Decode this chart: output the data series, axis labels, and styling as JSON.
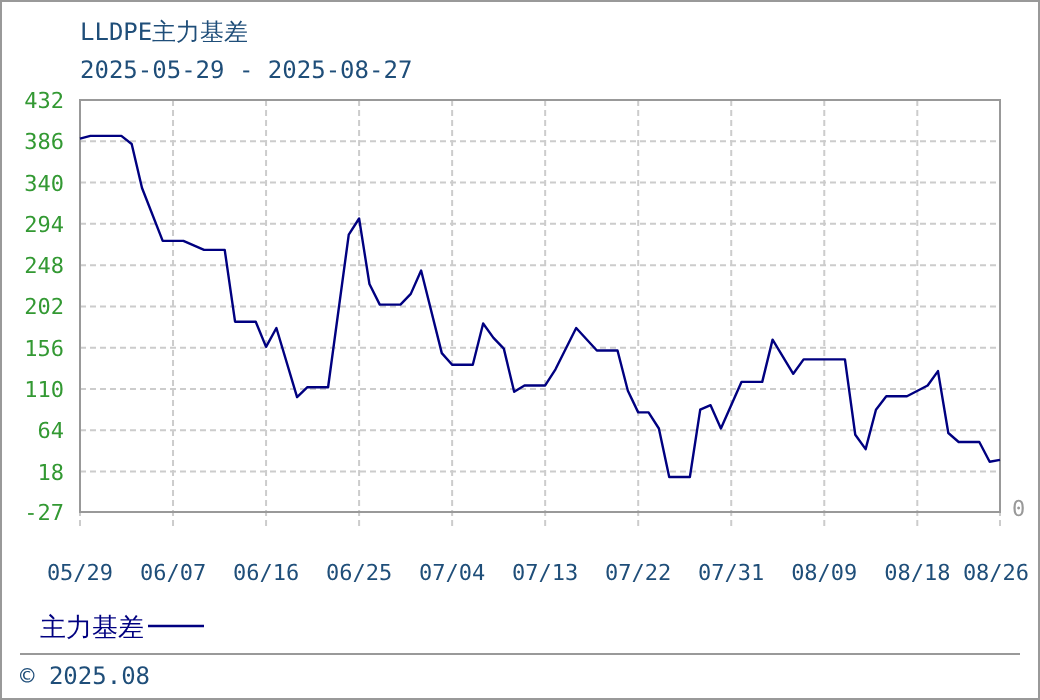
{
  "chart_data": {
    "type": "line",
    "title": "LLDPE主力基差",
    "subtitle": "2025-05-29 - 2025-08-27",
    "x": [
      "2025-05-29",
      "2025-05-30",
      "2025-06-02",
      "2025-06-03",
      "2025-06-04",
      "2025-06-06",
      "2025-06-08",
      "2025-06-10",
      "2025-06-12",
      "2025-06-13",
      "2025-06-15",
      "2025-06-16",
      "2025-06-17",
      "2025-06-19",
      "2025-06-20",
      "2025-06-22",
      "2025-06-24",
      "2025-06-25",
      "2025-06-26",
      "2025-06-27",
      "2025-06-29",
      "2025-06-30",
      "2025-07-01",
      "2025-07-03",
      "2025-07-04",
      "2025-07-06",
      "2025-07-07",
      "2025-07-08",
      "2025-07-09",
      "2025-07-10",
      "2025-07-11",
      "2025-07-13",
      "2025-07-14",
      "2025-07-16",
      "2025-07-18",
      "2025-07-20",
      "2025-07-21",
      "2025-07-22",
      "2025-07-23",
      "2025-07-24",
      "2025-07-25",
      "2025-07-27",
      "2025-07-28",
      "2025-07-29",
      "2025-07-30",
      "2025-08-01",
      "2025-08-03",
      "2025-08-04",
      "2025-08-06",
      "2025-08-07",
      "2025-08-11",
      "2025-08-12",
      "2025-08-13",
      "2025-08-14",
      "2025-08-15",
      "2025-08-17",
      "2025-08-19",
      "2025-08-20",
      "2025-08-21",
      "2025-08-22",
      "2025-08-24",
      "2025-08-25",
      "2025-08-26"
    ],
    "series": [
      {
        "name": "主力基差",
        "color": "#000080",
        "values": [
          389,
          392,
          392,
          383,
          334,
          275,
          275,
          265,
          265,
          185,
          185,
          157,
          178,
          101,
          112,
          112,
          282,
          300,
          227,
          204,
          204,
          216,
          242,
          150,
          137,
          137,
          183,
          167,
          155,
          107,
          114,
          114,
          132,
          178,
          153,
          153,
          108,
          84,
          84,
          66,
          12,
          12,
          87,
          92,
          66,
          118,
          118,
          165,
          127,
          143,
          143,
          59,
          43,
          87,
          102,
          102,
          114,
          130,
          61,
          51,
          51,
          29,
          31
        ]
      }
    ],
    "xlim": [
      "2025-05-29",
      "2025-08-26"
    ],
    "xticks": [
      {
        "value": "2025-05-29",
        "label": "05/29"
      },
      {
        "value": "2025-06-07",
        "label": "06/07"
      },
      {
        "value": "2025-06-16",
        "label": "06/16"
      },
      {
        "value": "2025-06-25",
        "label": "06/25"
      },
      {
        "value": "2025-07-04",
        "label": "07/04"
      },
      {
        "value": "2025-07-13",
        "label": "07/13"
      },
      {
        "value": "2025-07-22",
        "label": "07/22"
      },
      {
        "value": "2025-07-31",
        "label": "07/31"
      },
      {
        "value": "2025-08-09",
        "label": "08/09"
      },
      {
        "value": "2025-08-18",
        "label": "08/18"
      },
      {
        "value": "2025-08-26",
        "label": "08/26"
      }
    ],
    "ylim": [
      -27,
      432
    ],
    "yticks": [
      -27,
      18,
      64,
      110,
      156,
      202,
      248,
      294,
      340,
      386,
      432
    ],
    "grid": true,
    "legend": "bottom left",
    "line_style": "solid",
    "annotations": [
      "© 2025.08",
      "0"
    ]
  }
}
